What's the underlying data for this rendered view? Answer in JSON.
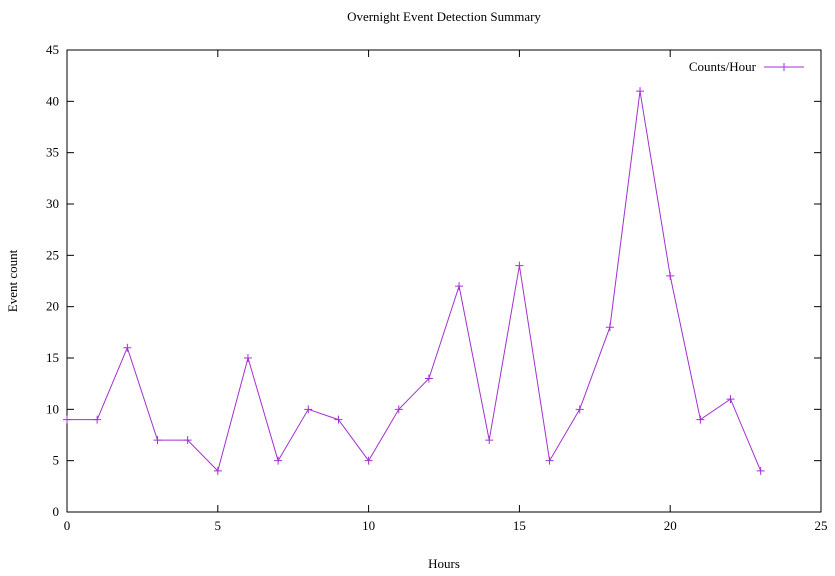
{
  "chart_data": {
    "type": "line",
    "title": "Overnight Event Detection Summary",
    "xlabel": "Hours",
    "ylabel": "Event count",
    "xlim": [
      0,
      25
    ],
    "ylim": [
      0,
      45
    ],
    "xticks": [
      0,
      5,
      10,
      15,
      20,
      25
    ],
    "yticks": [
      0,
      5,
      10,
      15,
      20,
      25,
      30,
      35,
      40,
      45
    ],
    "grid": false,
    "legend_position": "top-right",
    "series": [
      {
        "name": "Counts/Hour",
        "color": "#a330d0",
        "marker": "plus",
        "x": [
          0,
          1,
          2,
          3,
          4,
          5,
          6,
          7,
          8,
          9,
          10,
          11,
          12,
          13,
          14,
          15,
          16,
          17,
          18,
          19,
          20,
          21,
          22,
          23
        ],
        "y": [
          9,
          9,
          16,
          7,
          7,
          4,
          15,
          5,
          10,
          9,
          5,
          10,
          13,
          22,
          7,
          24,
          5,
          10,
          18,
          41,
          23,
          9,
          11,
          4
        ]
      }
    ]
  }
}
